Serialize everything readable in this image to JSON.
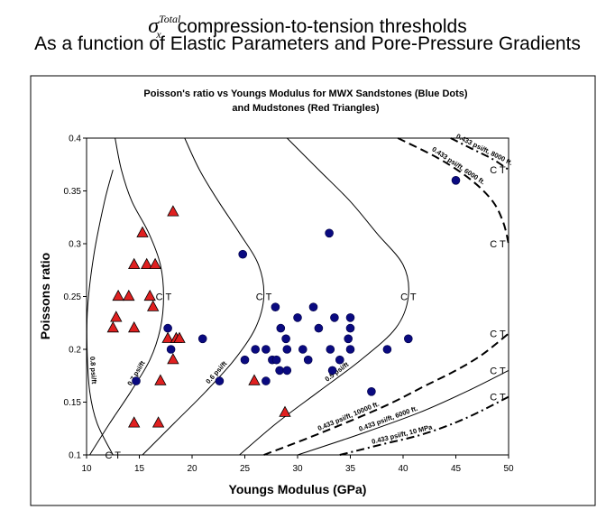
{
  "slide": {
    "title_symbol": "σ",
    "title_superscript": "Total",
    "title_subscript": "x",
    "title_line1": "compression-to-tension thresholds",
    "title_line2": "As a function of Elastic Parameters and Pore-Pressure Gradients"
  },
  "chart_data": {
    "type": "scatter",
    "title": "Poisson's ratio vs Youngs Modulus for MWX Sandstones (Blue Dots)",
    "subtitle": "and Mudstones (Red Triangles)",
    "xlabel": "Youngs Modulus (GPa)",
    "ylabel": "Poissons ratio",
    "xlim": [
      10,
      50
    ],
    "ylim": [
      0.1,
      0.4
    ],
    "xticks": [
      10,
      15,
      20,
      25,
      30,
      35,
      40,
      45,
      50
    ],
    "yticks": [
      0.1,
      0.15,
      0.2,
      0.25,
      0.3,
      0.35,
      0.4
    ],
    "ytick_labels": [
      "0.1",
      "0.15",
      "0.2",
      "0.25",
      "0.3",
      "0.35",
      "0.4"
    ],
    "grid": false,
    "colors": {
      "sandstone": "#0a0a80",
      "mudstone": "#e02020",
      "frame": "#000000"
    },
    "series": [
      {
        "marker": "circle",
        "points": [
          [
            14.7,
            0.17
          ],
          [
            17.7,
            0.22
          ],
          [
            18.0,
            0.2
          ],
          [
            21.0,
            0.21
          ],
          [
            22.6,
            0.17
          ],
          [
            24.8,
            0.29
          ],
          [
            25.0,
            0.19
          ],
          [
            26.0,
            0.2
          ],
          [
            27.0,
            0.17
          ],
          [
            27.0,
            0.2
          ],
          [
            27.6,
            0.19
          ],
          [
            27.9,
            0.24
          ],
          [
            28.0,
            0.19
          ],
          [
            28.3,
            0.18
          ],
          [
            28.4,
            0.22
          ],
          [
            28.9,
            0.21
          ],
          [
            29.0,
            0.18
          ],
          [
            29.0,
            0.2
          ],
          [
            30.0,
            0.23
          ],
          [
            30.5,
            0.2
          ],
          [
            31.0,
            0.19
          ],
          [
            31.5,
            0.24
          ],
          [
            32.0,
            0.22
          ],
          [
            33.0,
            0.31
          ],
          [
            33.1,
            0.2
          ],
          [
            33.3,
            0.18
          ],
          [
            33.5,
            0.23
          ],
          [
            34.0,
            0.19
          ],
          [
            34.8,
            0.21
          ],
          [
            35.0,
            0.23
          ],
          [
            35.0,
            0.22
          ],
          [
            35.0,
            0.2
          ],
          [
            37.0,
            0.16
          ],
          [
            38.5,
            0.2
          ],
          [
            40.5,
            0.21
          ],
          [
            45.0,
            0.36
          ]
        ]
      },
      {
        "marker": "triangle",
        "points": [
          [
            12.5,
            0.22
          ],
          [
            12.8,
            0.23
          ],
          [
            13.0,
            0.25
          ],
          [
            14.0,
            0.25
          ],
          [
            14.5,
            0.22
          ],
          [
            14.5,
            0.28
          ],
          [
            14.5,
            0.13
          ],
          [
            15.3,
            0.31
          ],
          [
            15.7,
            0.28
          ],
          [
            16.0,
            0.25
          ],
          [
            16.3,
            0.24
          ],
          [
            16.5,
            0.28
          ],
          [
            16.8,
            0.13
          ],
          [
            17.0,
            0.17
          ],
          [
            17.7,
            0.21
          ],
          [
            18.2,
            0.19
          ],
          [
            18.2,
            0.33
          ],
          [
            18.5,
            0.21
          ],
          [
            18.8,
            0.21
          ],
          [
            25.9,
            0.17
          ],
          [
            28.8,
            0.14
          ]
        ]
      }
    ],
    "curves": [
      {
        "style": "solid",
        "label": "0.8 psi/ft",
        "ct_label": "C T",
        "points": [
          [
            12.5,
            0.1
          ],
          [
            11.0,
            0.13
          ],
          [
            10.3,
            0.16
          ],
          [
            10.05,
            0.2
          ],
          [
            10.1,
            0.24
          ],
          [
            10.7,
            0.29
          ],
          [
            11.7,
            0.34
          ],
          [
            12.5,
            0.37
          ]
        ]
      },
      {
        "style": "solid",
        "label": "0.7 psi/ft",
        "ct_label": "C T",
        "points": [
          [
            10.3,
            0.1
          ],
          [
            12.2,
            0.13
          ],
          [
            14.2,
            0.16
          ],
          [
            16.0,
            0.19
          ],
          [
            17.0,
            0.22
          ],
          [
            17.3,
            0.25
          ],
          [
            17.0,
            0.28
          ],
          [
            15.9,
            0.31
          ],
          [
            14.3,
            0.34
          ],
          [
            13.3,
            0.37
          ],
          [
            12.7,
            0.4
          ]
        ]
      },
      {
        "style": "solid",
        "label": "0.6 psi/ft",
        "ct_label": "C T",
        "points": [
          [
            15.3,
            0.1
          ],
          [
            18.3,
            0.13
          ],
          [
            21.3,
            0.16
          ],
          [
            24.0,
            0.19
          ],
          [
            26.0,
            0.22
          ],
          [
            26.8,
            0.25
          ],
          [
            26.3,
            0.28
          ],
          [
            24.5,
            0.31
          ],
          [
            22.5,
            0.34
          ],
          [
            20.7,
            0.37
          ],
          [
            19.3,
            0.4
          ]
        ]
      },
      {
        "style": "solid",
        "label": "0.5 psi/ft",
        "ct_label": "C T",
        "points": [
          [
            24.5,
            0.1
          ],
          [
            28.0,
            0.13
          ],
          [
            32.0,
            0.16
          ],
          [
            36.0,
            0.19
          ],
          [
            39.3,
            0.22
          ],
          [
            40.5,
            0.25
          ],
          [
            40.0,
            0.28
          ],
          [
            37.5,
            0.31
          ],
          [
            35.0,
            0.34
          ],
          [
            32.0,
            0.37
          ],
          [
            29.0,
            0.4
          ]
        ]
      },
      {
        "style": "dashed",
        "label": "0.433 psi/ft, 6000 ft.",
        "ct_label": "C T",
        "points": [
          [
            39.5,
            0.4
          ],
          [
            43.5,
            0.38
          ],
          [
            46.5,
            0.36
          ],
          [
            48.5,
            0.34
          ],
          [
            49.5,
            0.32
          ],
          [
            50.0,
            0.3
          ]
        ]
      },
      {
        "style": "dashdot",
        "label": "0.433 psi/ft, 8000 ft.",
        "ct_label": "C T",
        "points": [
          [
            44.5,
            0.4
          ],
          [
            46.5,
            0.39
          ],
          [
            48.5,
            0.38
          ],
          [
            50.0,
            0.37
          ]
        ]
      },
      {
        "style": "dashed",
        "label": "0.433 psi/ft, 10000 ft.",
        "ct_label": "C T",
        "points": [
          [
            26.8,
            0.1
          ],
          [
            32.0,
            0.12
          ],
          [
            38.0,
            0.145
          ],
          [
            42.0,
            0.165
          ],
          [
            45.0,
            0.18
          ],
          [
            47.5,
            0.195
          ],
          [
            50.0,
            0.215
          ]
        ]
      },
      {
        "style": "solid",
        "label": "0.433 psi/ft, 6000 ft.",
        "ct_label": "C T",
        "points": [
          [
            30.0,
            0.1
          ],
          [
            36.0,
            0.12
          ],
          [
            41.5,
            0.14
          ],
          [
            46.0,
            0.16
          ],
          [
            50.0,
            0.18
          ]
        ]
      },
      {
        "style": "dashdot",
        "label": "0.433 psi/ft, 10 MPa",
        "ct_label": "C T",
        "points": [
          [
            34.0,
            0.1
          ],
          [
            38.0,
            0.11
          ],
          [
            42.0,
            0.12
          ],
          [
            46.0,
            0.135
          ],
          [
            50.0,
            0.155
          ]
        ]
      }
    ]
  }
}
